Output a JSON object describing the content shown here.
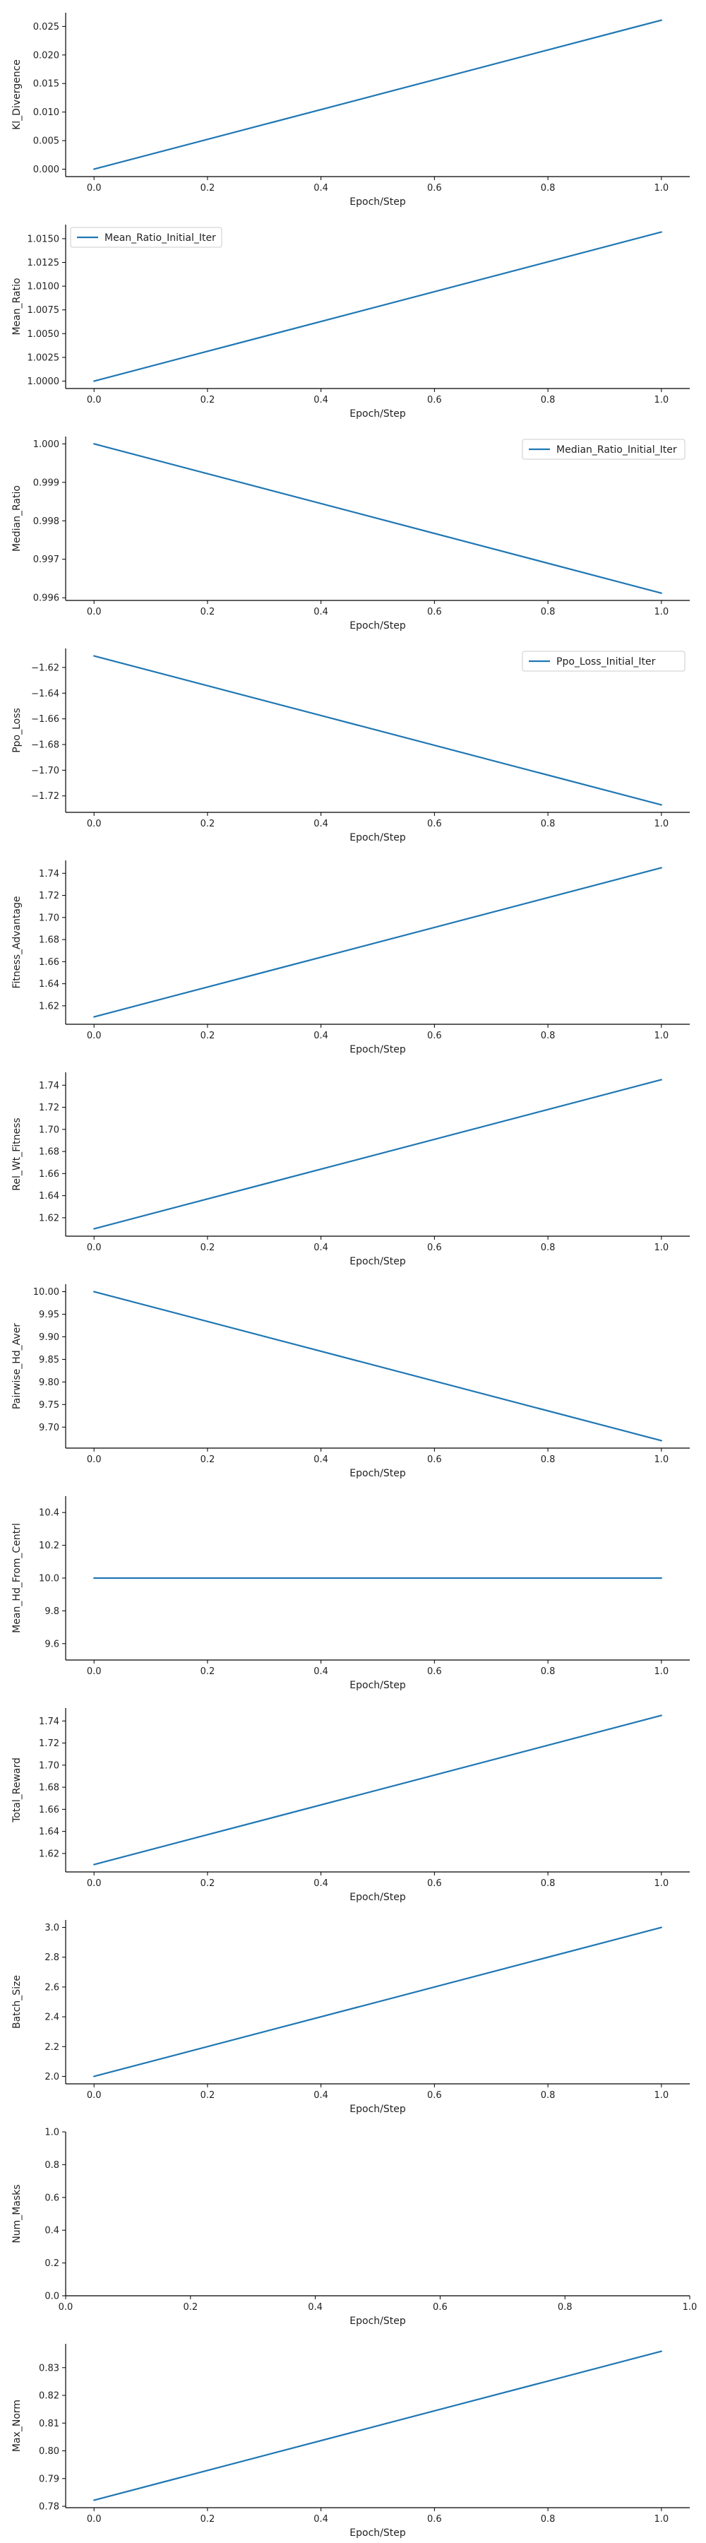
{
  "colors": {
    "line": "#1f77b4",
    "axis": "#000000",
    "legend_border": "#cccccc"
  },
  "chart_data": [
    {
      "type": "line",
      "xlabel": "Epoch/Step",
      "ylabel": "Kl_Divergence",
      "legend": null,
      "x": [
        0.0,
        1.0
      ],
      "values": [
        0.0,
        0.0261
      ],
      "xlim": [
        -0.05,
        1.05
      ],
      "ylim": [
        -0.0013,
        0.0274
      ],
      "xticks": [
        0.0,
        0.2,
        0.4,
        0.6,
        0.8,
        1.0
      ],
      "xtick_labels": [
        "0.0",
        "0.2",
        "0.4",
        "0.6",
        "0.8",
        "1.0"
      ],
      "yticks": [
        0.0,
        0.005,
        0.01,
        0.015,
        0.02,
        0.025
      ],
      "ytick_labels": [
        "0.000",
        "0.005",
        "0.010",
        "0.015",
        "0.020",
        "0.025"
      ]
    },
    {
      "type": "line",
      "xlabel": "Epoch/Step",
      "ylabel": "Mean_Ratio",
      "legend": {
        "label": "Mean_Ratio_Initial_Iter",
        "position": "top-left"
      },
      "x": [
        0.0,
        1.0
      ],
      "values": [
        1.0,
        1.0157
      ],
      "xlim": [
        -0.05,
        1.05
      ],
      "ylim": [
        0.99922,
        1.01648
      ],
      "xticks": [
        0.0,
        0.2,
        0.4,
        0.6,
        0.8,
        1.0
      ],
      "xtick_labels": [
        "0.0",
        "0.2",
        "0.4",
        "0.6",
        "0.8",
        "1.0"
      ],
      "yticks": [
        1.0,
        1.0025,
        1.005,
        1.0075,
        1.01,
        1.0125,
        1.015
      ],
      "ytick_labels": [
        "1.0000",
        "1.0025",
        "1.0050",
        "1.0075",
        "1.0100",
        "1.0125",
        "1.0150"
      ]
    },
    {
      "type": "line",
      "xlabel": "Epoch/Step",
      "ylabel": "Median_Ratio",
      "legend": {
        "label": "Median_Ratio_Initial_Iter",
        "position": "top-right"
      },
      "x": [
        0.0,
        1.0
      ],
      "values": [
        1.0,
        0.99612
      ],
      "xlim": [
        -0.05,
        1.05
      ],
      "ylim": [
        0.99593,
        1.00019
      ],
      "xticks": [
        0.0,
        0.2,
        0.4,
        0.6,
        0.8,
        1.0
      ],
      "xtick_labels": [
        "0.0",
        "0.2",
        "0.4",
        "0.6",
        "0.8",
        "1.0"
      ],
      "yticks": [
        0.996,
        0.997,
        0.998,
        0.999,
        1.0
      ],
      "ytick_labels": [
        "0.996",
        "0.997",
        "0.998",
        "0.999",
        "1.000"
      ]
    },
    {
      "type": "line",
      "xlabel": "Epoch/Step",
      "ylabel": "Ppo_Loss",
      "legend": {
        "label": "Ppo_Loss_Initial_Iter",
        "position": "top-right"
      },
      "x": [
        0.0,
        1.0
      ],
      "values": [
        -1.611,
        -1.727
      ],
      "xlim": [
        -0.05,
        1.05
      ],
      "ylim": [
        -1.7328,
        -1.6052
      ],
      "xticks": [
        0.0,
        0.2,
        0.4,
        0.6,
        0.8,
        1.0
      ],
      "xtick_labels": [
        "0.0",
        "0.2",
        "0.4",
        "0.6",
        "0.8",
        "1.0"
      ],
      "yticks": [
        -1.62,
        -1.64,
        -1.66,
        -1.68,
        -1.7,
        -1.72
      ],
      "ytick_labels": [
        "−1.62",
        "−1.64",
        "−1.66",
        "−1.68",
        "−1.70",
        "−1.72"
      ]
    },
    {
      "type": "line",
      "xlabel": "Epoch/Step",
      "ylabel": "Fitness_Advantage",
      "legend": null,
      "x": [
        0.0,
        1.0
      ],
      "values": [
        1.61,
        1.745
      ],
      "xlim": [
        -0.05,
        1.05
      ],
      "ylim": [
        1.6033,
        1.7517
      ],
      "xticks": [
        0.0,
        0.2,
        0.4,
        0.6,
        0.8,
        1.0
      ],
      "xtick_labels": [
        "0.0",
        "0.2",
        "0.4",
        "0.6",
        "0.8",
        "1.0"
      ],
      "yticks": [
        1.62,
        1.64,
        1.66,
        1.68,
        1.7,
        1.72,
        1.74
      ],
      "ytick_labels": [
        "1.62",
        "1.64",
        "1.66",
        "1.68",
        "1.70",
        "1.72",
        "1.74"
      ]
    },
    {
      "type": "line",
      "xlabel": "Epoch/Step",
      "ylabel": "Rel_Wt_Fitness",
      "legend": null,
      "x": [
        0.0,
        1.0
      ],
      "values": [
        1.61,
        1.745
      ],
      "xlim": [
        -0.05,
        1.05
      ],
      "ylim": [
        1.6033,
        1.7517
      ],
      "xticks": [
        0.0,
        0.2,
        0.4,
        0.6,
        0.8,
        1.0
      ],
      "xtick_labels": [
        "0.0",
        "0.2",
        "0.4",
        "0.6",
        "0.8",
        "1.0"
      ],
      "yticks": [
        1.62,
        1.64,
        1.66,
        1.68,
        1.7,
        1.72,
        1.74
      ],
      "ytick_labels": [
        "1.62",
        "1.64",
        "1.66",
        "1.68",
        "1.70",
        "1.72",
        "1.74"
      ]
    },
    {
      "type": "line",
      "xlabel": "Epoch/Step",
      "ylabel": "Pairwise_Hd_Aver",
      "legend": null,
      "x": [
        0.0,
        1.0
      ],
      "values": [
        10.0,
        9.67
      ],
      "xlim": [
        -0.05,
        1.05
      ],
      "ylim": [
        9.6535,
        10.0165
      ],
      "xticks": [
        0.0,
        0.2,
        0.4,
        0.6,
        0.8,
        1.0
      ],
      "xtick_labels": [
        "0.0",
        "0.2",
        "0.4",
        "0.6",
        "0.8",
        "1.0"
      ],
      "yticks": [
        9.7,
        9.75,
        9.8,
        9.85,
        9.9,
        9.95,
        10.0
      ],
      "ytick_labels": [
        "9.70",
        "9.75",
        "9.80",
        "9.85",
        "9.90",
        "9.95",
        "10.00"
      ]
    },
    {
      "type": "line",
      "xlabel": "Epoch/Step",
      "ylabel": "Mean_Hd_From_Centrl",
      "legend": null,
      "x": [
        0.0,
        1.0
      ],
      "values": [
        10.0,
        10.0
      ],
      "xlim": [
        -0.05,
        1.05
      ],
      "ylim": [
        9.5,
        10.5
      ],
      "xticks": [
        0.0,
        0.2,
        0.4,
        0.6,
        0.8,
        1.0
      ],
      "xtick_labels": [
        "0.0",
        "0.2",
        "0.4",
        "0.6",
        "0.8",
        "1.0"
      ],
      "yticks": [
        9.6,
        9.8,
        10.0,
        10.2,
        10.4
      ],
      "ytick_labels": [
        "9.6",
        "9.8",
        "10.0",
        "10.2",
        "10.4"
      ]
    },
    {
      "type": "line",
      "xlabel": "Epoch/Step",
      "ylabel": "Total_Reward",
      "legend": null,
      "x": [
        0.0,
        1.0
      ],
      "values": [
        1.61,
        1.745
      ],
      "xlim": [
        -0.05,
        1.05
      ],
      "ylim": [
        1.6033,
        1.7517
      ],
      "xticks": [
        0.0,
        0.2,
        0.4,
        0.6,
        0.8,
        1.0
      ],
      "xtick_labels": [
        "0.0",
        "0.2",
        "0.4",
        "0.6",
        "0.8",
        "1.0"
      ],
      "yticks": [
        1.62,
        1.64,
        1.66,
        1.68,
        1.7,
        1.72,
        1.74
      ],
      "ytick_labels": [
        "1.62",
        "1.64",
        "1.66",
        "1.68",
        "1.70",
        "1.72",
        "1.74"
      ]
    },
    {
      "type": "line",
      "xlabel": "Epoch/Step",
      "ylabel": "Batch_Size",
      "legend": null,
      "x": [
        0.0,
        1.0
      ],
      "values": [
        2.0,
        3.0
      ],
      "xlim": [
        -0.05,
        1.05
      ],
      "ylim": [
        1.95,
        3.05
      ],
      "xticks": [
        0.0,
        0.2,
        0.4,
        0.6,
        0.8,
        1.0
      ],
      "xtick_labels": [
        "0.0",
        "0.2",
        "0.4",
        "0.6",
        "0.8",
        "1.0"
      ],
      "yticks": [
        2.0,
        2.2,
        2.4,
        2.6,
        2.8,
        3.0
      ],
      "ytick_labels": [
        "2.0",
        "2.2",
        "2.4",
        "2.6",
        "2.8",
        "3.0"
      ]
    },
    {
      "type": "line",
      "xlabel": "Epoch/Step",
      "ylabel": "Num_Masks",
      "legend": null,
      "x": [],
      "values": [],
      "xlim": [
        0.0,
        1.0
      ],
      "ylim": [
        0.0,
        1.0
      ],
      "xticks": [
        0.0,
        0.2,
        0.4,
        0.6,
        0.8,
        1.0
      ],
      "xtick_labels": [
        "0.0",
        "0.2",
        "0.4",
        "0.6",
        "0.8",
        "1.0"
      ],
      "yticks": [
        0.0,
        0.2,
        0.4,
        0.6,
        0.8,
        1.0
      ],
      "ytick_labels": [
        "0.0",
        "0.2",
        "0.4",
        "0.6",
        "0.8",
        "1.0"
      ]
    },
    {
      "type": "line",
      "xlabel": "Epoch/Step",
      "ylabel": "Max_Norm",
      "legend": null,
      "x": [
        0.0,
        1.0
      ],
      "values": [
        0.7822,
        0.8359
      ],
      "xlim": [
        -0.05,
        1.05
      ],
      "ylim": [
        0.7795,
        0.8386
      ],
      "xticks": [
        0.0,
        0.2,
        0.4,
        0.6,
        0.8,
        1.0
      ],
      "xtick_labels": [
        "0.0",
        "0.2",
        "0.4",
        "0.6",
        "0.8",
        "1.0"
      ],
      "yticks": [
        0.78,
        0.79,
        0.8,
        0.81,
        0.82,
        0.83
      ],
      "ytick_labels": [
        "0.78",
        "0.79",
        "0.80",
        "0.81",
        "0.82",
        "0.83"
      ]
    }
  ]
}
